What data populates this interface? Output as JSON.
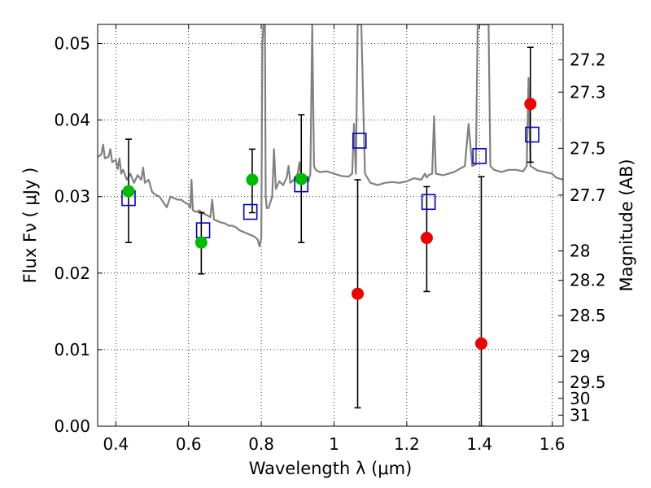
{
  "chart_data": {
    "type": "scatter",
    "title": "",
    "xlabel": "Wavelength  λ (μm)",
    "ylabel": "Flux  Fν  ( μJy )",
    "y2label": "Magnitude (AB)",
    "xlim": [
      0.35,
      1.63
    ],
    "ylim": [
      0.0,
      0.0525
    ],
    "grid": true,
    "xticks": [
      0.4,
      0.6,
      0.8,
      1.0,
      1.2,
      1.4,
      1.6
    ],
    "xtick_labels": [
      "0.4",
      "0.6",
      "0.8",
      "1",
      "1.2",
      "1.4",
      "1.6"
    ],
    "yticks": [
      0.0,
      0.01,
      0.02,
      0.03,
      0.04,
      0.05
    ],
    "ytick_labels": [
      "0.00",
      "0.01",
      "0.02",
      "0.03",
      "0.04",
      "0.05"
    ],
    "mag_ticks": [
      27.2,
      27.3,
      27.5,
      27.7,
      28,
      28.2,
      28.5,
      29,
      29.5,
      30,
      31
    ],
    "mag_tick_labels": [
      "27.2",
      "27.3",
      "27.5",
      "27.7",
      "28",
      "28.2",
      "28.5",
      "29",
      "29.5",
      "30",
      "31"
    ],
    "colors": {
      "detection": "#00bb00",
      "nondetection": "#ee0000",
      "model": "#0000cc",
      "spectrum": "#808080",
      "errorbar": "#000000"
    },
    "observed": [
      {
        "x": 0.435,
        "y": 0.0307,
        "err": [
          0.024,
          0.0375
        ],
        "detected": true
      },
      {
        "x": 0.635,
        "y": 0.024,
        "err": [
          0.0199,
          0.0279
        ],
        "detected": true
      },
      {
        "x": 0.775,
        "y": 0.0322,
        "err": [
          0.0279,
          0.0362
        ],
        "detected": true
      },
      {
        "x": 0.91,
        "y": 0.0323,
        "err": [
          0.024,
          0.0407
        ],
        "detected": true
      },
      {
        "x": 1.065,
        "y": 0.0173,
        "err": [
          0.0024,
          0.0322
        ],
        "detected": false
      },
      {
        "x": 1.255,
        "y": 0.0246,
        "err": [
          0.0176,
          0.0313
        ],
        "detected": false
      },
      {
        "x": 1.405,
        "y": 0.0108,
        "err": [
          0.0,
          0.0326
        ],
        "detected": false
      },
      {
        "x": 1.54,
        "y": 0.0421,
        "err": [
          0.0345,
          0.0495
        ],
        "detected": false
      }
    ],
    "model_photometry": [
      {
        "x": 0.435,
        "y": 0.0298
      },
      {
        "x": 0.64,
        "y": 0.0256
      },
      {
        "x": 0.77,
        "y": 0.028
      },
      {
        "x": 0.91,
        "y": 0.0316
      },
      {
        "x": 1.07,
        "y": 0.0373
      },
      {
        "x": 1.26,
        "y": 0.0293
      },
      {
        "x": 1.4,
        "y": 0.0353
      },
      {
        "x": 1.545,
        "y": 0.0381
      }
    ],
    "spectrum": [
      [
        0.35,
        0.0352
      ],
      [
        0.36,
        0.0355
      ],
      [
        0.365,
        0.0368
      ],
      [
        0.37,
        0.035
      ],
      [
        0.38,
        0.0352
      ],
      [
        0.385,
        0.0362
      ],
      [
        0.39,
        0.0345
      ],
      [
        0.4,
        0.0348
      ],
      [
        0.405,
        0.0336
      ],
      [
        0.41,
        0.035
      ],
      [
        0.415,
        0.033
      ],
      [
        0.42,
        0.0335
      ],
      [
        0.43,
        0.0322
      ],
      [
        0.44,
        0.033
      ],
      [
        0.45,
        0.0318
      ],
      [
        0.46,
        0.0328
      ],
      [
        0.47,
        0.0322
      ],
      [
        0.475,
        0.0338
      ],
      [
        0.48,
        0.0318
      ],
      [
        0.49,
        0.0322
      ],
      [
        0.5,
        0.0306
      ],
      [
        0.51,
        0.0302
      ],
      [
        0.52,
        0.03
      ],
      [
        0.53,
        0.0293
      ],
      [
        0.54,
        0.0286
      ],
      [
        0.55,
        0.03
      ],
      [
        0.56,
        0.0298
      ],
      [
        0.57,
        0.0296
      ],
      [
        0.58,
        0.0296
      ],
      [
        0.59,
        0.0292
      ],
      [
        0.6,
        0.029
      ],
      [
        0.605,
        0.0285
      ],
      [
        0.608,
        0.0322
      ],
      [
        0.612,
        0.0282
      ],
      [
        0.62,
        0.028
      ],
      [
        0.63,
        0.0282
      ],
      [
        0.64,
        0.0278
      ],
      [
        0.65,
        0.0276
      ],
      [
        0.66,
        0.0273
      ],
      [
        0.665,
        0.0296
      ],
      [
        0.67,
        0.027
      ],
      [
        0.68,
        0.0268
      ],
      [
        0.69,
        0.0266
      ],
      [
        0.7,
        0.0265
      ],
      [
        0.71,
        0.0262
      ],
      [
        0.72,
        0.0262
      ],
      [
        0.73,
        0.026
      ],
      [
        0.74,
        0.0256
      ],
      [
        0.75,
        0.0254
      ],
      [
        0.76,
        0.0252
      ],
      [
        0.77,
        0.025
      ],
      [
        0.78,
        0.0248
      ],
      [
        0.79,
        0.0244
      ],
      [
        0.795,
        0.0235
      ],
      [
        0.8,
        0.0245
      ],
      [
        0.803,
        0.05
      ],
      [
        0.806,
        0.0525
      ],
      [
        0.81,
        0.0525
      ],
      [
        0.812,
        0.03
      ],
      [
        0.815,
        0.0285
      ],
      [
        0.82,
        0.0285
      ],
      [
        0.83,
        0.03
      ],
      [
        0.835,
        0.0362
      ],
      [
        0.84,
        0.031
      ],
      [
        0.85,
        0.032
      ],
      [
        0.86,
        0.0315
      ],
      [
        0.87,
        0.0325
      ],
      [
        0.875,
        0.034
      ],
      [
        0.88,
        0.0318
      ],
      [
        0.89,
        0.0322
      ],
      [
        0.9,
        0.033
      ],
      [
        0.905,
        0.0345
      ],
      [
        0.91,
        0.032
      ],
      [
        0.92,
        0.0322
      ],
      [
        0.93,
        0.032
      ],
      [
        0.935,
        0.033
      ],
      [
        0.94,
        0.0525
      ],
      [
        0.945,
        0.034
      ],
      [
        0.95,
        0.0335
      ],
      [
        0.96,
        0.0332
      ],
      [
        0.98,
        0.0333
      ],
      [
        1.0,
        0.033
      ],
      [
        1.02,
        0.0327
      ],
      [
        1.04,
        0.0326
      ],
      [
        1.05,
        0.033
      ],
      [
        1.055,
        0.0395
      ],
      [
        1.06,
        0.033
      ],
      [
        1.065,
        0.0525
      ],
      [
        1.075,
        0.0525
      ],
      [
        1.085,
        0.033
      ],
      [
        1.1,
        0.0318
      ],
      [
        1.12,
        0.0315
      ],
      [
        1.14,
        0.0318
      ],
      [
        1.16,
        0.0319
      ],
      [
        1.18,
        0.0318
      ],
      [
        1.2,
        0.032
      ],
      [
        1.22,
        0.0324
      ],
      [
        1.24,
        0.0322
      ],
      [
        1.25,
        0.033
      ],
      [
        1.255,
        0.0325
      ],
      [
        1.26,
        0.0328
      ],
      [
        1.27,
        0.033
      ],
      [
        1.275,
        0.0405
      ],
      [
        1.28,
        0.033
      ],
      [
        1.3,
        0.0328
      ],
      [
        1.33,
        0.0332
      ],
      [
        1.36,
        0.034
      ],
      [
        1.37,
        0.0395
      ],
      [
        1.38,
        0.034
      ],
      [
        1.39,
        0.0342
      ],
      [
        1.395,
        0.0525
      ],
      [
        1.4,
        0.0525
      ],
      [
        1.41,
        0.0525
      ],
      [
        1.425,
        0.0525
      ],
      [
        1.43,
        0.034
      ],
      [
        1.44,
        0.0335
      ],
      [
        1.46,
        0.0332
      ],
      [
        1.48,
        0.0335
      ],
      [
        1.5,
        0.0335
      ],
      [
        1.52,
        0.0333
      ],
      [
        1.53,
        0.034
      ],
      [
        1.535,
        0.0455
      ],
      [
        1.54,
        0.034
      ],
      [
        1.56,
        0.0334
      ],
      [
        1.58,
        0.0332
      ],
      [
        1.6,
        0.033
      ],
      [
        1.61,
        0.0325
      ],
      [
        1.63,
        0.0322
      ]
    ]
  }
}
